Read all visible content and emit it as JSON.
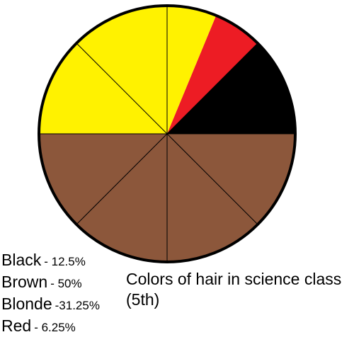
{
  "chart_data": {
    "type": "pie",
    "title": "Colors of hair in science class (5th)",
    "slices": [
      {
        "label": "Black",
        "value": 12.5,
        "value_label": "- 12.5%",
        "color": "#000000"
      },
      {
        "label": "Red",
        "value": 6.25,
        "value_label": "- 6.25%",
        "color": "#ed1c24"
      },
      {
        "label": "Blonde",
        "value": 31.25,
        "value_label": "-31.25%",
        "color": "#fff200"
      },
      {
        "label": "Brown",
        "value": 50,
        "value_label": "- 50%",
        "color": "#8c573b"
      }
    ],
    "sector_lines_every_percent": 12.5,
    "legend_order": [
      "Black",
      "Brown",
      "Blonde",
      "Red"
    ]
  }
}
